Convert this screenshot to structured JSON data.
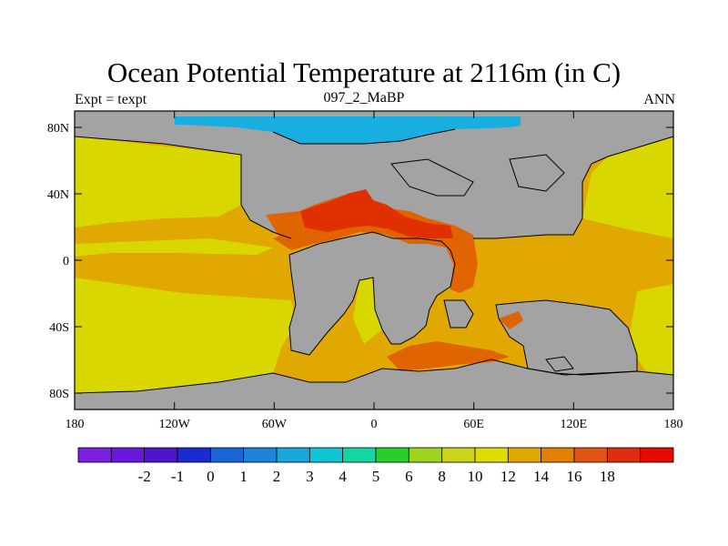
{
  "title": "Ocean Potential Temperature at 2116m (in C)",
  "subtitle_left": "Expt = texpt",
  "subtitle_center": "097_2_MaBP",
  "subtitle_right": "ANN",
  "x_tick_labels": [
    "180",
    "120W",
    "60W",
    "0",
    "60E",
    "120E",
    "180"
  ],
  "y_tick_labels": [
    "80N",
    "40N",
    "0",
    "40S",
    "80S"
  ],
  "colorbar": {
    "colors": [
      "#7b1fe0",
      "#6a17db",
      "#4d16cc",
      "#1c2bd1",
      "#1a66d6",
      "#1d84d8",
      "#19a8dc",
      "#0fc4d4",
      "#14d6a3",
      "#26cf2a",
      "#9ed41c",
      "#cbd31a",
      "#e0dc00",
      "#e0a800",
      "#e38000",
      "#e05514",
      "#e02c10",
      "#e60a00"
    ],
    "labels": [
      "-2",
      "-1",
      "0",
      "1",
      "2",
      "3",
      "4",
      "5",
      "6",
      "8",
      "10",
      "12",
      "14",
      "16",
      "18"
    ]
  },
  "map_colors": {
    "land": "#a3a3a3",
    "ocean_11_12": "#d8d800",
    "ocean_12_14": "#e0a800",
    "ocean_14_16": "#e06500",
    "ocean_16_18": "#e03000",
    "arctic": "#19aee0"
  }
}
